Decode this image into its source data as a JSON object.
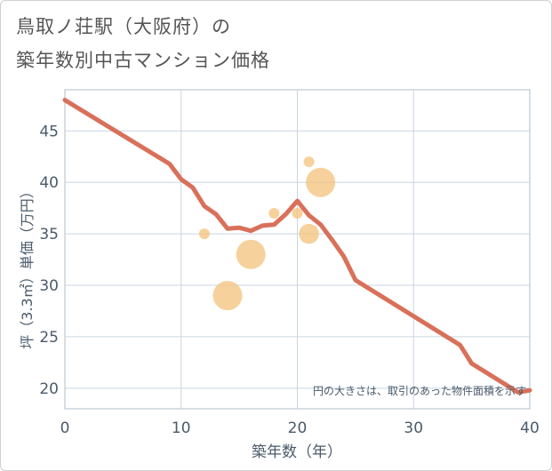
{
  "title": {
    "line1": "鳥取ノ荘駅（大阪府）の",
    "line2": "築年数別中古マンション価格"
  },
  "chart_data": {
    "type": "scatter",
    "title": "鳥取ノ荘駅（大阪府）の 築年数別中古マンション価格",
    "xlabel": "築年数（年）",
    "ylabel": "坪（3.3㎡）単価（万円）",
    "xlim": [
      0,
      40
    ],
    "ylim": [
      18,
      49
    ],
    "xticks": [
      0,
      10,
      20,
      30,
      40
    ],
    "yticks": [
      20,
      25,
      30,
      35,
      40,
      45
    ],
    "grid": true,
    "annotation": "円の大きさは、取引のあった物件面積を示す",
    "colors": {
      "line": "#d9705a",
      "bubble": "#f3c27a",
      "grid": "#c9d6e3",
      "axis_text": "#4a5a6a"
    },
    "series": [
      {
        "name": "trend",
        "type": "line",
        "x": [
          0,
          9,
          10,
          11,
          12,
          13,
          14,
          15,
          16,
          17,
          18,
          19,
          20,
          21,
          22,
          23,
          24,
          25,
          34,
          35,
          39,
          40
        ],
        "y": [
          48,
          41.8,
          40.3,
          39.5,
          37.7,
          36.9,
          35.5,
          35.6,
          35.3,
          35.8,
          35.9,
          36.9,
          38.2,
          36.8,
          35.9,
          34.4,
          32.8,
          30.5,
          24.2,
          22.4,
          19.6,
          19.8
        ]
      },
      {
        "name": "transactions",
        "type": "bubble",
        "points": [
          {
            "x": 12,
            "y": 35,
            "size": 1
          },
          {
            "x": 14,
            "y": 29,
            "size": 4
          },
          {
            "x": 16,
            "y": 33,
            "size": 4
          },
          {
            "x": 18,
            "y": 37,
            "size": 1
          },
          {
            "x": 20,
            "y": 37,
            "size": 1
          },
          {
            "x": 21,
            "y": 35,
            "size": 2.5
          },
          {
            "x": 21,
            "y": 42,
            "size": 1
          },
          {
            "x": 22,
            "y": 40,
            "size": 4
          }
        ]
      }
    ]
  }
}
